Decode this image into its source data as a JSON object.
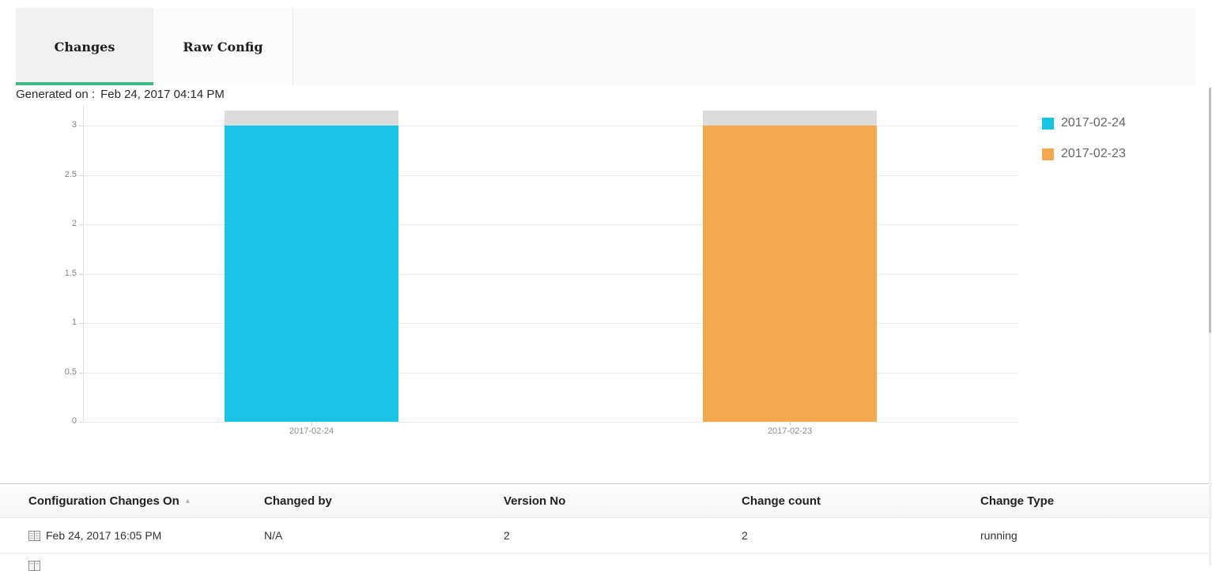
{
  "tabs": [
    {
      "label": "Changes",
      "active": true
    },
    {
      "label": "Raw Config",
      "active": false
    }
  ],
  "generated_on": {
    "label": "Generated on :",
    "value": "Feb 24, 2017 04:14 PM"
  },
  "colors": {
    "active_tab_underline": "#3eb884",
    "series_cyan": "#18c3e3",
    "series_orange": "#f2a84c",
    "bar_cap_gray": "#dcdcdc"
  },
  "chart_data": {
    "type": "bar",
    "title": "",
    "xlabel": "",
    "ylabel": "",
    "categories": [
      "2017-02-24",
      "2017-02-23"
    ],
    "values": [
      3,
      3
    ],
    "bar_colors": [
      "#18c3e3",
      "#f2a84c"
    ],
    "cap_value": 0.15,
    "cap_color": "#dcdcdc",
    "y_ticks": [
      0,
      0.5,
      1,
      1.5,
      2,
      2.5,
      3
    ],
    "ylim": [
      0,
      3.15
    ],
    "grid": true,
    "legend_position": "right",
    "legend": [
      {
        "label": "2017-02-24",
        "color": "#18c3e3"
      },
      {
        "label": "2017-02-23",
        "color": "#f2a84c"
      }
    ]
  },
  "table": {
    "columns": [
      "Configuration Changes On",
      "Changed by",
      "Version No",
      "Change count",
      "Change Type"
    ],
    "sort_column": "Configuration Changes On",
    "sort_indicator": "▲",
    "rows": [
      {
        "changed_on": "Feb 24, 2017 16:05 PM",
        "changed_by": "N/A",
        "version_no": "2",
        "change_count": "2",
        "change_type": "running"
      }
    ],
    "partial_second_row_visible": true
  }
}
